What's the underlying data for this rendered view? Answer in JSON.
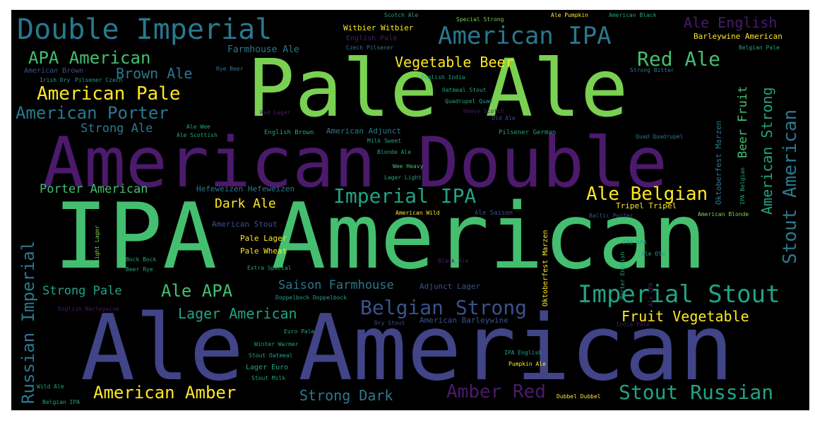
{
  "palette": {
    "background": "#000000",
    "border": "#ffffff",
    "purple": "#4b1a6b",
    "indigo": "#414487",
    "blue": "#3b528b",
    "teal": "#2a788e",
    "cyan": "#22a384",
    "green": "#44bf70",
    "lime": "#7ad151",
    "yellow": "#fde725"
  },
  "words": {
    "pale_ale": "Pale Ale",
    "american_double": "American Double",
    "ipa_american": "IPA American",
    "ale_american": "Ale American",
    "double_imperial": "Double Imperial",
    "american_ipa": "American IPA",
    "ale_english": "Ale English",
    "apa_american": "APA American",
    "red_ale": "Red Ale",
    "brown_ale": "Brown Ale",
    "vegetable_beer": "Vegetable Beer",
    "american_pale": "American Pale",
    "american_porter": "American Porter",
    "strong_ale": "Strong Ale",
    "farmhouse_ale": "Farmhouse Ale",
    "porter_american": "Porter American",
    "imperial_ipa": "Imperial IPA",
    "ale_belgian": "Ale Belgian",
    "dark_ale": "Dark Ale",
    "strong_pale": "Strong Pale",
    "ale_apa": "Ale APA",
    "saison_farmhouse": "Saison Farmhouse",
    "imperial_stout": "Imperial Stout",
    "belgian_strong": "Belgian Strong",
    "lager_american": "Lager American",
    "fruit_vegetable": "Fruit Vegetable",
    "american_amber": "American Amber",
    "strong_dark": "Strong Dark",
    "amber_red": "Amber Red",
    "stout_russian": "Stout Russian",
    "russian_imperial": "Russian Imperial",
    "stout_american": "Stout American",
    "american_strong": "American Strong",
    "beer_fruit": "Beer Fruit",
    "hefeweizen_hefeweizen": "Hefeweizen Hefeweizen",
    "american_stout": "American Stout",
    "pale_lager": "Pale Lager",
    "pale_wheat": "Pale Wheat",
    "american_adjunct": "American Adjunct",
    "english_brown": "English Brown",
    "american_brown": "American Brown",
    "english_india": "English India",
    "oktoberfest_marzen": "Oktoberfest Marzen",
    "adjunct_lager": "Adjunct Lager",
    "american_barleywine": "American Barleywine",
    "pilsener_german": "Pilsener German",
    "quad_quadrupel": "Quad Quadrupel",
    "tripel_tripel": "Tripel Tripel",
    "baltic_porter": "Baltic Porter",
    "american_blonde": "American Blonde",
    "witbier_witbier": "Witbier Witbier",
    "barleywine_american": "Barleywine American",
    "scotch_ale": "Scotch Ale",
    "special_strong": "Special Strong",
    "ale_pumpkin": "Ale Pumpkin",
    "american_black": "American Black",
    "belgian_pale": "Belgian Pale",
    "lager_light": "Lager Light",
    "blonde_ale": "Blonde Ale",
    "milk_sweet": "Milk Sweet",
    "wee_heavy": "Wee Heavy",
    "irish_dry": "Irish Dry",
    "pilsener_czech": "Pilsener Czech",
    "red_lager": "Red Lager",
    "ale_wee": "Ale Wee",
    "ale_scottish": "Ale Scottish",
    "rye_beer": "Rye Beer",
    "heavy_scotch": "Heavy Scotch",
    "old_ale": "Old Ale",
    "oatmeal_stout": "Oatmeal Stout",
    "quadrupel_quad": "Quadrupel Quad",
    "english_barleywine": "English Barleywine",
    "dry_stout": "Dry Stout",
    "euro_pale": "Euro Pale",
    "ipa_english": "IPA English",
    "pumpkin_ale": "Pumpkin Ale",
    "wild_ale": "Wild Ale",
    "belgian_ipa": "Belgian IPA",
    "dubbel_dubbel": "Dubbel Dubbel",
    "lager_euro": "Lager Euro",
    "stout_milk": "Stout Milk",
    "stout_oatmeal": "Stout Oatmeal",
    "doppelbock_doppelbock": "Doppelbock Doppelbock",
    "extra_special": "Extra Special",
    "bock_bock": "Bock Bock",
    "beer_rye": "Beer Rye",
    "black_ale": "Black Ale",
    "india_pale": "India Pale",
    "ale_ipa": "Ale IPA",
    "ale_old": "Ale Old",
    "light_lager": "Light Lager",
    "american_wild": "American Wild",
    "ale_saison": "Ale Saison",
    "winter_warmer": "Winter Warmer",
    "english_pale": "English Pale",
    "strong_bitter": "Strong Bitter",
    "czech_pilsener": "Czech Pilsener",
    "porter_english": "Porter English",
    "ipa_belgian": "IPA Belgian"
  }
}
